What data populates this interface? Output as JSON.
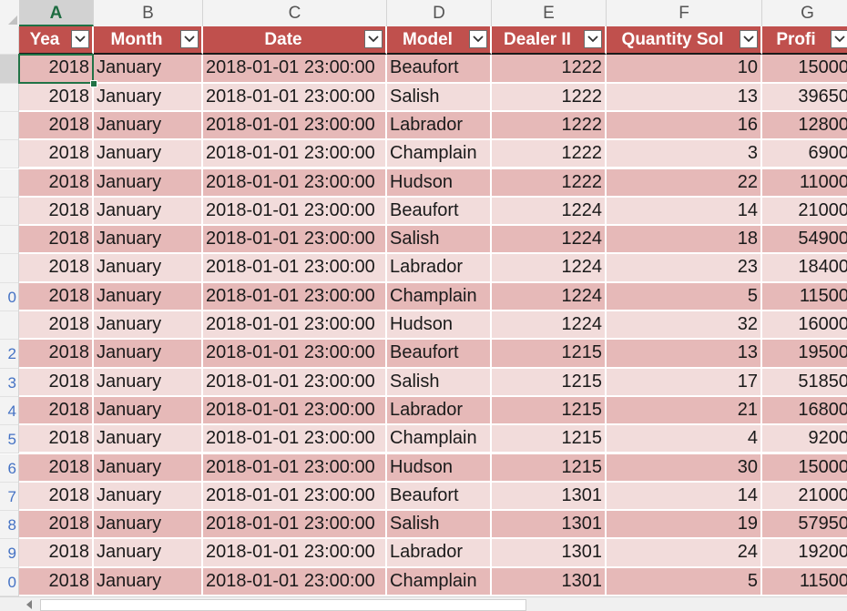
{
  "app": "Spreadsheet",
  "columns": [
    "A",
    "B",
    "C",
    "D",
    "E",
    "F",
    "G"
  ],
  "active_cell": "A2",
  "row_numbers": [
    "",
    "",
    "",
    "",
    "",
    "",
    "",
    "",
    "",
    "0",
    "",
    "2",
    "3",
    "4",
    "5",
    "6",
    "7",
    "8",
    "9",
    "0"
  ],
  "header": [
    "Yea",
    "Month",
    "Date",
    "Model",
    "Dealer II",
    "Quantity Sol",
    "Profi"
  ],
  "rows": [
    [
      "2018",
      "January",
      "2018-01-01 23:00:00",
      "Beaufort",
      "1222",
      "10",
      "15000"
    ],
    [
      "2018",
      "January",
      "2018-01-01 23:00:00",
      "Salish",
      "1222",
      "13",
      "39650"
    ],
    [
      "2018",
      "January",
      "2018-01-01 23:00:00",
      "Labrador",
      "1222",
      "16",
      "12800"
    ],
    [
      "2018",
      "January",
      "2018-01-01 23:00:00",
      "Champlain",
      "1222",
      "3",
      "6900"
    ],
    [
      "2018",
      "January",
      "2018-01-01 23:00:00",
      "Hudson",
      "1222",
      "22",
      "11000"
    ],
    [
      "2018",
      "January",
      "2018-01-01 23:00:00",
      "Beaufort",
      "1224",
      "14",
      "21000"
    ],
    [
      "2018",
      "January",
      "2018-01-01 23:00:00",
      "Salish",
      "1224",
      "18",
      "54900"
    ],
    [
      "2018",
      "January",
      "2018-01-01 23:00:00",
      "Labrador",
      "1224",
      "23",
      "18400"
    ],
    [
      "2018",
      "January",
      "2018-01-01 23:00:00",
      "Champlain",
      "1224",
      "5",
      "11500"
    ],
    [
      "2018",
      "January",
      "2018-01-01 23:00:00",
      "Hudson",
      "1224",
      "32",
      "16000"
    ],
    [
      "2018",
      "January",
      "2018-01-01 23:00:00",
      "Beaufort",
      "1215",
      "13",
      "19500"
    ],
    [
      "2018",
      "January",
      "2018-01-01 23:00:00",
      "Salish",
      "1215",
      "17",
      "51850"
    ],
    [
      "2018",
      "January",
      "2018-01-01 23:00:00",
      "Labrador",
      "1215",
      "21",
      "16800"
    ],
    [
      "2018",
      "January",
      "2018-01-01 23:00:00",
      "Champlain",
      "1215",
      "4",
      "9200"
    ],
    [
      "2018",
      "January",
      "2018-01-01 23:00:00",
      "Hudson",
      "1215",
      "30",
      "15000"
    ],
    [
      "2018",
      "January",
      "2018-01-01 23:00:00",
      "Beaufort",
      "1301",
      "14",
      "21000"
    ],
    [
      "2018",
      "January",
      "2018-01-01 23:00:00",
      "Salish",
      "1301",
      "19",
      "57950"
    ],
    [
      "2018",
      "January",
      "2018-01-01 23:00:00",
      "Labrador",
      "1301",
      "24",
      "19200"
    ],
    [
      "2018",
      "January",
      "2018-01-01 23:00:00",
      "Champlain",
      "1301",
      "5",
      "11500"
    ]
  ],
  "colors": {
    "header_fill": "#c0504d",
    "band_dark": "#e6b9b8",
    "band_light": "#f2dcdb",
    "selection": "#217346"
  },
  "icons": {
    "filter": "filter-dropdown-icon",
    "scroll_left": "scroll-left-arrow-icon"
  }
}
